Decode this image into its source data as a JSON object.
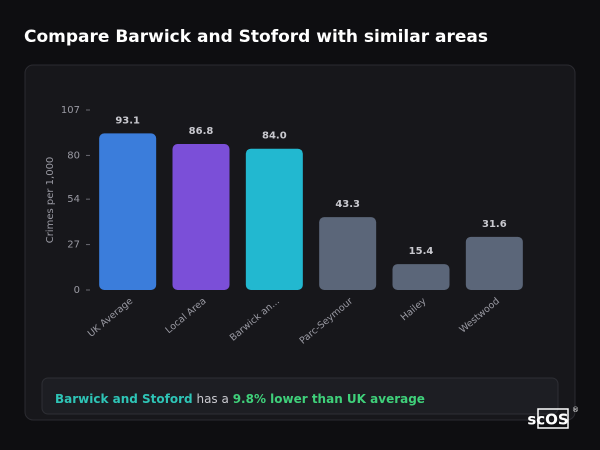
{
  "chart_data": {
    "type": "bar",
    "title": "Compare Barwick and Stoford with similar areas",
    "y_label": "Crimes per 1,000",
    "categories": [
      "UK Average",
      "Local Area",
      "Barwick an...",
      "Parc-Seymour",
      "Hailey",
      "Westwood"
    ],
    "values": [
      93.1,
      86.8,
      84.0,
      43.3,
      15.4,
      31.6
    ],
    "value_labels": [
      "93.1",
      "86.8",
      "84.0",
      "43.3",
      "15.4",
      "31.6"
    ],
    "colors": [
      "#3b7ddb",
      "#7b4fd8",
      "#22b8d0",
      "#5b6679",
      "#5b6679",
      "#5b6679"
    ],
    "ylim": [
      0,
      107
    ],
    "yticks": [
      0,
      27,
      54,
      80,
      107
    ],
    "grid": false
  },
  "summary": {
    "area": "Barwick and Stoford",
    "middle": "has a",
    "comparison": "9.8% lower than UK average"
  },
  "logo": {
    "text": "scOS",
    "mark": "®"
  }
}
